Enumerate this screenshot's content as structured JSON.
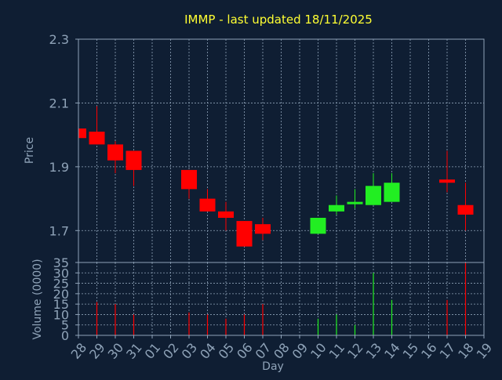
{
  "colors": {
    "background": "#0f1e33",
    "plot_background": "#0f1e33",
    "frame": "#8fa3b8",
    "grid": "#8fa3b8",
    "title": "#ffff33",
    "axis_text": "#8fa3b8",
    "up": "#22ee22",
    "down": "#ff0000"
  },
  "chart_data": [
    {
      "type": "candlestick",
      "title": "IMMP - last updated 18/11/2025",
      "ylabel": "Price",
      "ylim": [
        1.6,
        2.3
      ],
      "yticks": [
        "2.3",
        "2.1",
        "1.9",
        "1.7"
      ],
      "yticks_values": [
        2.3,
        2.1,
        1.9,
        1.7
      ],
      "grid": true,
      "x": [
        "28",
        "29",
        "30",
        "31",
        "01",
        "02",
        "03",
        "04",
        "05",
        "06",
        "07",
        "08",
        "09",
        "10",
        "11",
        "12",
        "13",
        "14",
        "15",
        "16",
        "17",
        "18",
        "19"
      ],
      "candles": [
        {
          "day": "28",
          "open": 2.02,
          "close": 1.99,
          "high": 2.02,
          "low": 1.99
        },
        {
          "day": "29",
          "open": 2.01,
          "close": 1.97,
          "high": 2.09,
          "low": 1.97
        },
        {
          "day": "30",
          "open": 1.97,
          "close": 1.92,
          "high": 1.98,
          "low": 1.88
        },
        {
          "day": "31",
          "open": 1.95,
          "close": 1.89,
          "high": 1.95,
          "low": 1.84
        },
        {
          "day": "03",
          "open": 1.89,
          "close": 1.83,
          "high": 1.89,
          "low": 1.8
        },
        {
          "day": "04",
          "open": 1.8,
          "close": 1.76,
          "high": 1.83,
          "low": 1.76
        },
        {
          "day": "05",
          "open": 1.76,
          "close": 1.74,
          "high": 1.79,
          "low": 1.7
        },
        {
          "day": "06",
          "open": 1.73,
          "close": 1.65,
          "high": 1.73,
          "low": 1.65
        },
        {
          "day": "07",
          "open": 1.72,
          "close": 1.69,
          "high": 1.74,
          "low": 1.67
        },
        {
          "day": "10",
          "open": 1.69,
          "close": 1.74,
          "high": 1.74,
          "low": 1.69
        },
        {
          "day": "11",
          "open": 1.76,
          "close": 1.78,
          "high": 1.81,
          "low": 1.75
        },
        {
          "day": "12",
          "open": 1.79,
          "close": 1.79,
          "high": 1.83,
          "low": 1.77
        },
        {
          "day": "13",
          "open": 1.78,
          "close": 1.84,
          "high": 1.88,
          "low": 1.78
        },
        {
          "day": "14",
          "open": 1.79,
          "close": 1.85,
          "high": 1.88,
          "low": 1.79
        },
        {
          "day": "17",
          "open": 1.86,
          "close": 1.85,
          "high": 1.95,
          "low": 1.82
        },
        {
          "day": "18",
          "open": 1.78,
          "close": 1.75,
          "high": 1.85,
          "low": 1.7
        }
      ]
    },
    {
      "type": "bar",
      "ylabel": "Volume (0000)",
      "xlabel": "Day",
      "ylim": [
        0,
        35
      ],
      "yticks": [
        "35",
        "30",
        "25",
        "20",
        "15",
        "10",
        "5",
        "0"
      ],
      "yticks_values": [
        35,
        30,
        25,
        20,
        15,
        10,
        5,
        0
      ],
      "grid": true,
      "categories": [
        "28",
        "29",
        "30",
        "31",
        "01",
        "02",
        "03",
        "04",
        "05",
        "06",
        "07",
        "08",
        "09",
        "10",
        "11",
        "12",
        "13",
        "14",
        "15",
        "16",
        "17",
        "18",
        "19"
      ],
      "series": [
        {
          "values": [
            0,
            16,
            15,
            10,
            0,
            0,
            11,
            10,
            8,
            10,
            15,
            0,
            0,
            8,
            10,
            5,
            30,
            17,
            0,
            0,
            17,
            35,
            0
          ],
          "directions": [
            "down",
            "down",
            "down",
            "down",
            "",
            "",
            "down",
            "down",
            "down",
            "down",
            "down",
            "",
            "",
            "up",
            "up",
            "up",
            "up",
            "up",
            "",
            "",
            "down",
            "down",
            ""
          ]
        }
      ]
    }
  ]
}
